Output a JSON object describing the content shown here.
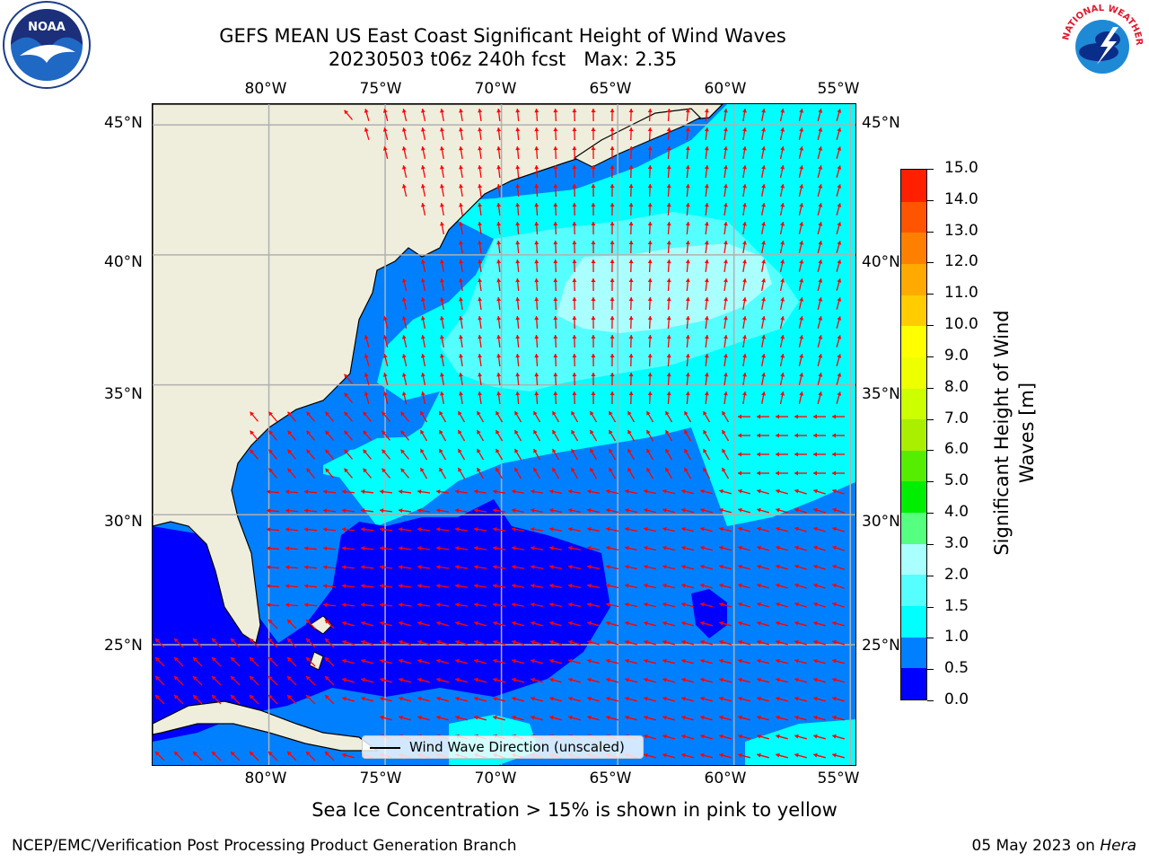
{
  "title_line1": "GEFS MEAN US East Coast Significant Height of Wind Waves",
  "title_line2": "20230503 t06z 240h fcst   Max: 2.35",
  "map": {
    "lon_labels": [
      "80°W",
      "75°W",
      "70°W",
      "65°W",
      "60°W",
      "55°W"
    ],
    "lat_labels": [
      "45°N",
      "40°N",
      "35°N",
      "30°N",
      "25°N"
    ],
    "lon_values": [
      -80,
      -75,
      -70,
      -65,
      -60,
      -55
    ],
    "lat_values": [
      45,
      40,
      35,
      30,
      25
    ],
    "lon_range": [
      -85,
      -54.7
    ],
    "lat_range": [
      20.3,
      45.8
    ],
    "gridlines": true,
    "colors": {
      "land": "#efeedd",
      "arrow": "#ff0000",
      "coast": "#000000",
      "grid": "#b0b0b0"
    }
  },
  "legend": {
    "label": "Wind Wave Direction (unscaled)",
    "placement": "lower-center"
  },
  "colorbar": {
    "title_line1": "Significant Height of Wind",
    "title_line2": "Waves [m]",
    "ticks": [
      "15.0",
      "14.0",
      "13.0",
      "12.0",
      "11.0",
      "10.0",
      "9.0",
      "8.0",
      "7.0",
      "6.0",
      "5.0",
      "4.0",
      "3.0",
      "2.0",
      "1.5",
      "1.0",
      "0.5",
      "0.0"
    ],
    "levels": [
      0.0,
      0.5,
      1.0,
      1.5,
      2.0,
      3.0,
      4.0,
      5.0,
      6.0,
      7.0,
      8.0,
      9.0,
      10.0,
      11.0,
      12.0,
      13.0,
      14.0,
      15.0
    ],
    "colors": [
      "#0000ff",
      "#0080ff",
      "#00ffff",
      "#55ffff",
      "#aaffff",
      "#55ff80",
      "#00ee00",
      "#55ee00",
      "#aaee00",
      "#ccff00",
      "#eeff00",
      "#ffff00",
      "#ffcc00",
      "#ffaa00",
      "#ff8000",
      "#ff5500",
      "#ff2000"
    ]
  },
  "note": "Sea Ice Concentration > 15% is shown in pink to yellow",
  "footer_left": "NCEP/EMC/Verification Post Processing Product Generation Branch",
  "footer_date": "05 May 2023 on ",
  "footer_host": "Hera",
  "logos": {
    "left": "NOAA",
    "right": "NATIONAL WEATHER SERVICE"
  }
}
